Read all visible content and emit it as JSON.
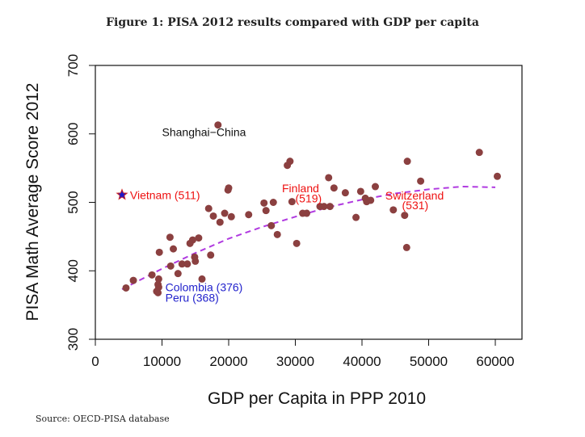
{
  "figure": {
    "title": "Figure 1: PISA 2012 results compared with GDP per capita",
    "source": "Source: OECD-PISA database"
  },
  "colors": {
    "point": "#8b4040",
    "trend": "#b03ae0",
    "highlight_red": "#ee1111",
    "highlight_blue": "#2222cc",
    "star_fill": "#1a1acc",
    "star_edge": "#cc2222"
  },
  "chart_data": {
    "type": "scatter",
    "xlabel": "GDP per Capita in PPP 2010",
    "ylabel": "PISA Math Average Score 2012",
    "xlim": [
      0,
      64000
    ],
    "ylim": [
      300,
      700
    ],
    "x_ticks": [
      0,
      10000,
      20000,
      30000,
      40000,
      50000,
      60000
    ],
    "y_ticks": [
      300,
      400,
      500,
      600,
      700
    ],
    "grid": false,
    "points": [
      [
        4600,
        375
      ],
      [
        5700,
        386
      ],
      [
        8500,
        394
      ],
      [
        9200,
        370
      ],
      [
        9400,
        380
      ],
      [
        9500,
        388
      ],
      [
        9600,
        427
      ],
      [
        11200,
        449
      ],
      [
        11300,
        407
      ],
      [
        11700,
        432
      ],
      [
        12400,
        396
      ],
      [
        13000,
        410
      ],
      [
        13800,
        410
      ],
      [
        14200,
        440
      ],
      [
        14600,
        445
      ],
      [
        14900,
        420
      ],
      [
        15000,
        414
      ],
      [
        15500,
        448
      ],
      [
        16000,
        388
      ],
      [
        17000,
        491
      ],
      [
        17300,
        423
      ],
      [
        17700,
        480
      ],
      [
        18400,
        613
      ],
      [
        18700,
        471
      ],
      [
        19400,
        484
      ],
      [
        19900,
        518
      ],
      [
        20000,
        521
      ],
      [
        20400,
        479
      ],
      [
        23000,
        482
      ],
      [
        25300,
        499
      ],
      [
        25600,
        488
      ],
      [
        26400,
        466
      ],
      [
        26700,
        500
      ],
      [
        27300,
        453
      ],
      [
        28800,
        554
      ],
      [
        29200,
        560
      ],
      [
        29500,
        501
      ],
      [
        30200,
        440
      ],
      [
        31100,
        484
      ],
      [
        31700,
        484
      ],
      [
        33700,
        494
      ],
      [
        34300,
        494
      ],
      [
        35000,
        536
      ],
      [
        35200,
        494
      ],
      [
        35800,
        521
      ],
      [
        37500,
        514
      ],
      [
        39100,
        478
      ],
      [
        39800,
        516
      ],
      [
        40500,
        506
      ],
      [
        40700,
        501
      ],
      [
        41300,
        503
      ],
      [
        42000,
        523
      ],
      [
        44700,
        489
      ],
      [
        46400,
        481
      ],
      [
        46700,
        434
      ],
      [
        46800,
        560
      ],
      [
        48800,
        531
      ],
      [
        57600,
        573
      ],
      [
        60300,
        538
      ]
    ],
    "highlights": [
      {
        "label": "Vietnam (511)",
        "x": 4000,
        "y": 511,
        "marker": "star",
        "color": "red"
      },
      {
        "label": "Colombia (376)",
        "x": 9500,
        "y": 376,
        "marker": "point",
        "color": "blue"
      },
      {
        "label": "Peru (368)",
        "x": 9400,
        "y": 368,
        "marker": "point",
        "color": "blue"
      }
    ],
    "annotations": [
      {
        "text": "Shanghai−China",
        "x": 10000,
        "y": 597,
        "color": "black"
      },
      {
        "text": "Finland",
        "x": 28000,
        "y": 515,
        "color": "red"
      },
      {
        "text": "(519)",
        "x": 30000,
        "y": 500,
        "color": "red"
      },
      {
        "text": "Switzerland",
        "x": 43500,
        "y": 504,
        "color": "red"
      },
      {
        "text": "(531)",
        "x": 46000,
        "y": 490,
        "color": "red"
      },
      {
        "text": "Colombia (376)",
        "x": 10500,
        "y": 370,
        "color": "blue"
      },
      {
        "text": "Peru (368)",
        "x": 10500,
        "y": 355,
        "color": "blue"
      },
      {
        "text": "Vietnam (511)",
        "x": 5200,
        "y": 505,
        "color": "red"
      }
    ],
    "trend": {
      "style": "dashed",
      "x": [
        4000,
        10000,
        15000,
        20000,
        25000,
        30000,
        35000,
        40000,
        45000,
        50000,
        55000,
        60000
      ],
      "y": [
        373,
        403,
        426,
        447,
        464,
        479,
        493,
        504,
        513,
        519,
        523,
        522
      ]
    }
  }
}
